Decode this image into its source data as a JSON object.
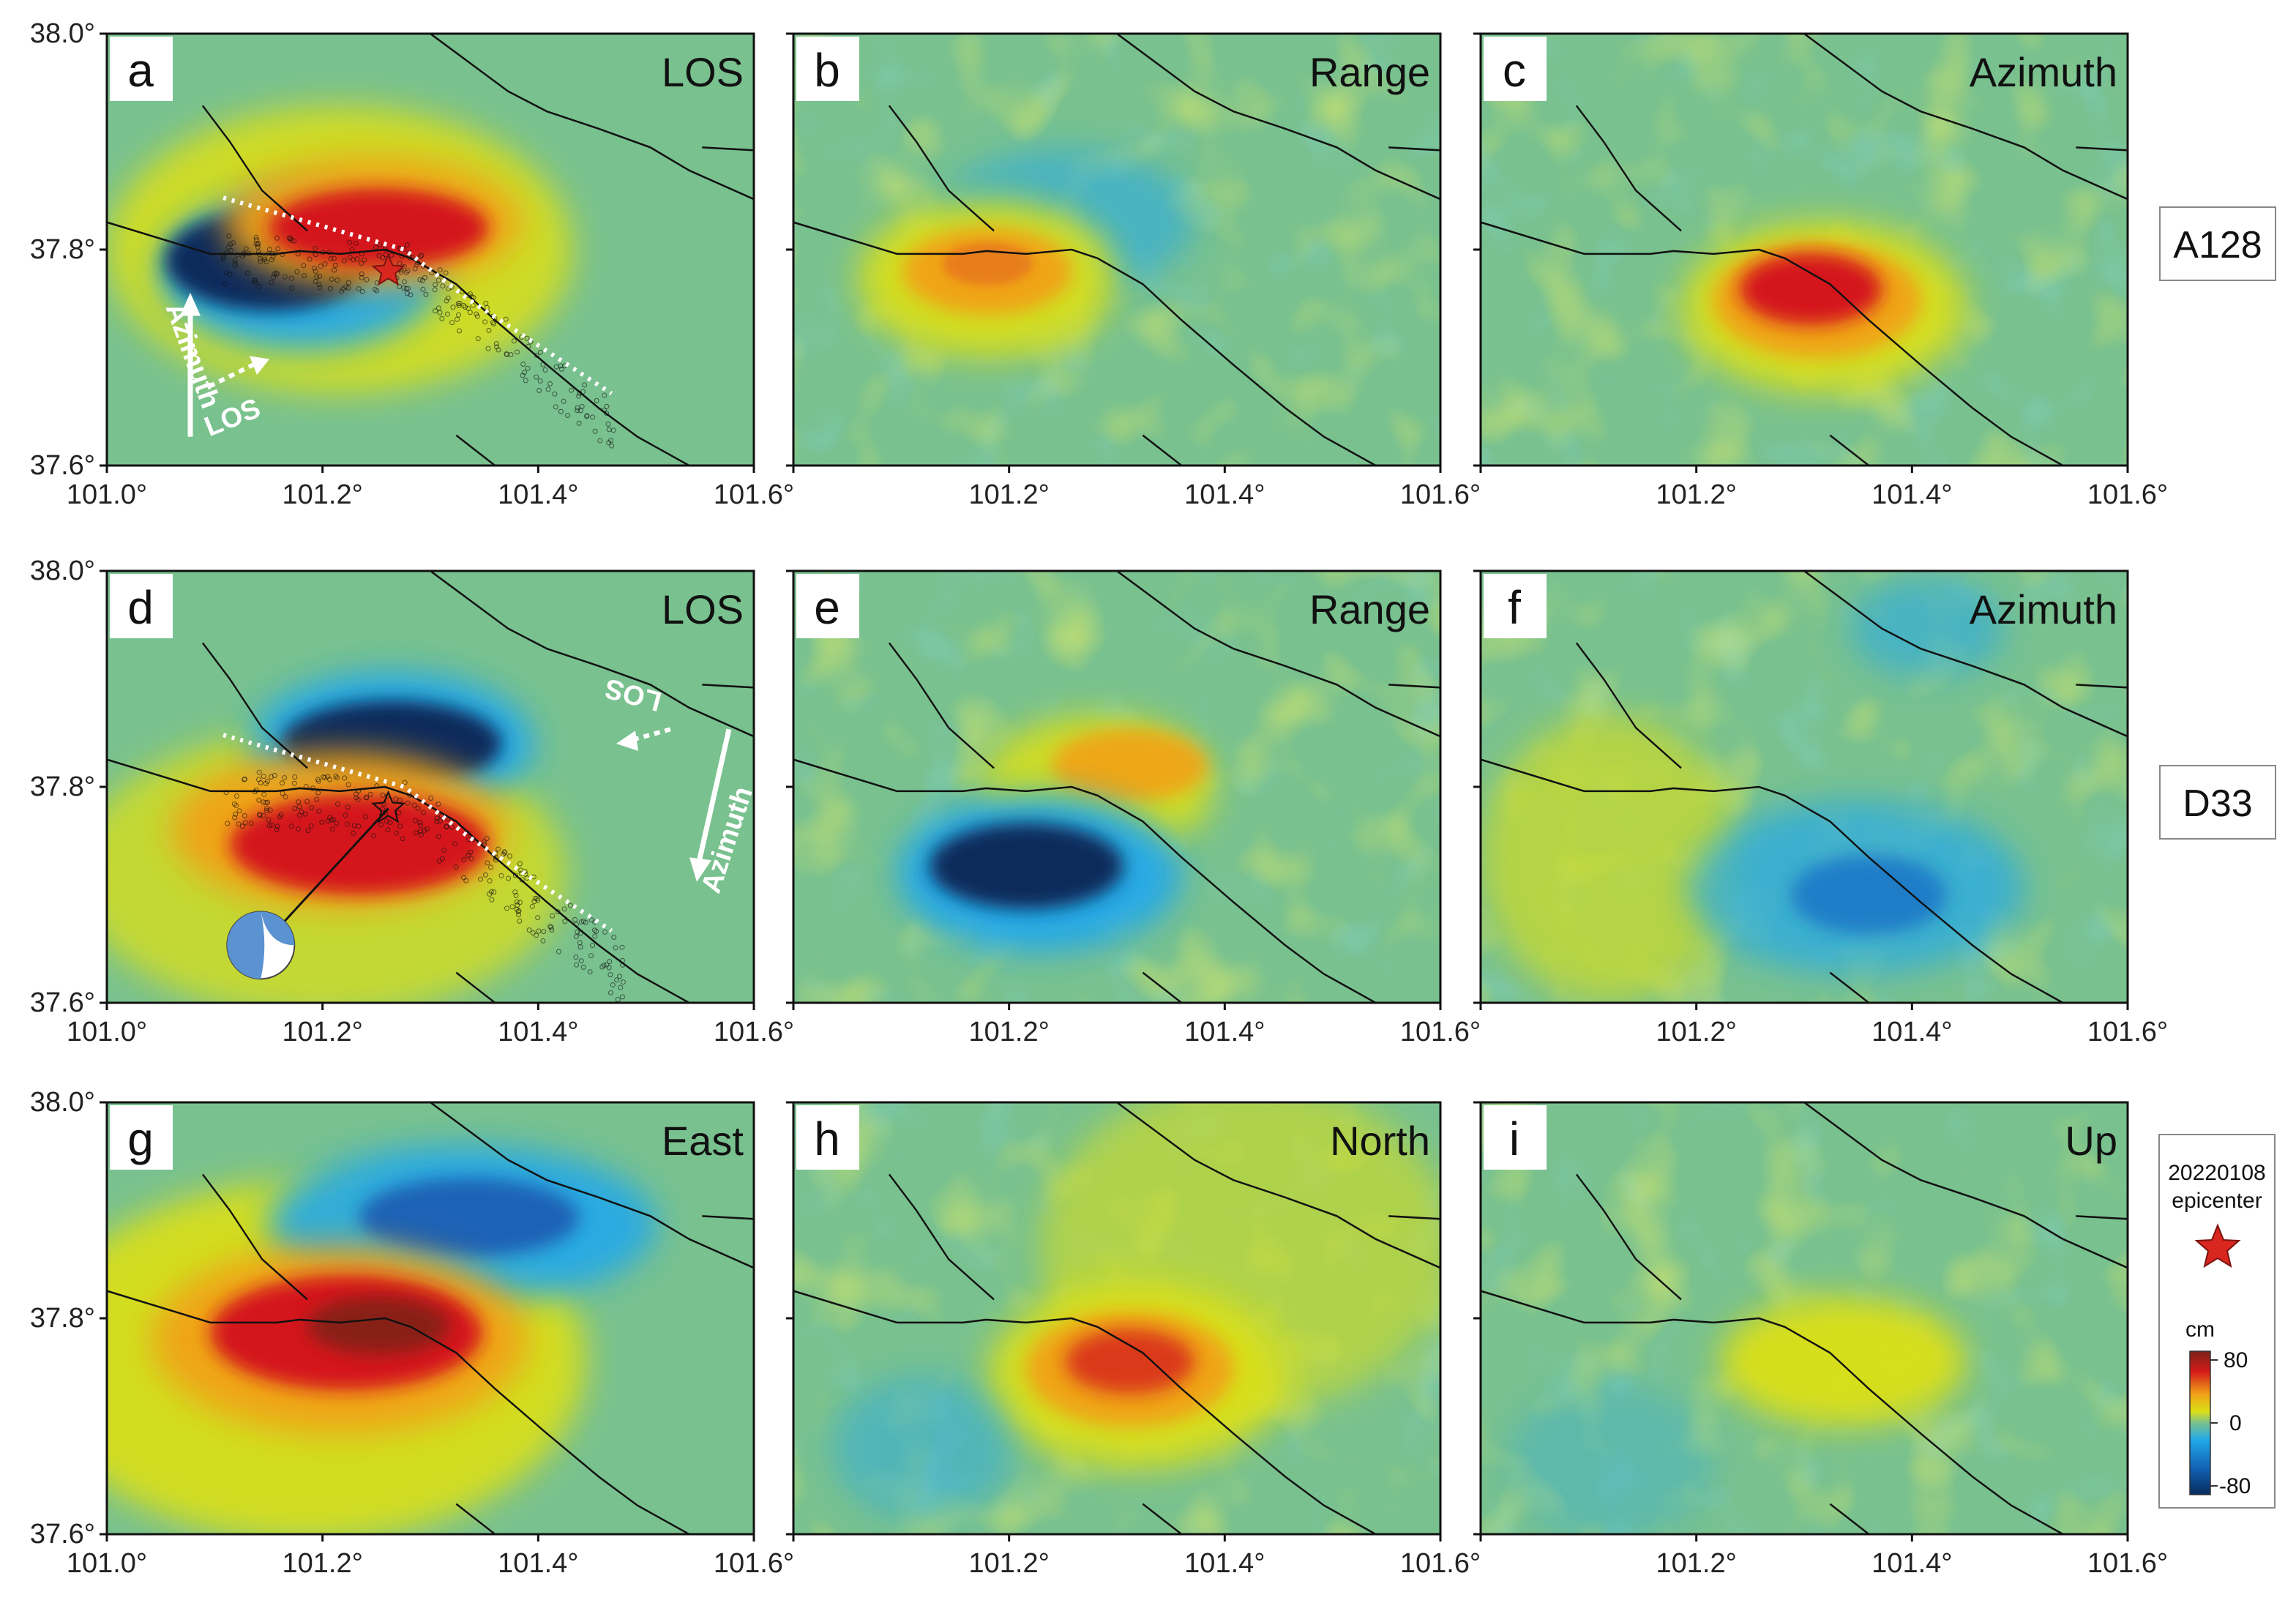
{
  "x_ticks": [
    "101.0°",
    "101.2°",
    "101.4°",
    "101.6°"
  ],
  "y_ticks": [
    "38.0°",
    "37.8°",
    "37.6°"
  ],
  "panels": [
    {
      "letter": "a",
      "title": "LOS",
      "field": "los_a128"
    },
    {
      "letter": "b",
      "title": "Range",
      "field": "range_a128"
    },
    {
      "letter": "c",
      "title": "Azimuth",
      "field": "azimuth_a128"
    },
    {
      "letter": "d",
      "title": "LOS",
      "field": "los_d33"
    },
    {
      "letter": "e",
      "title": "Range",
      "field": "range_d33"
    },
    {
      "letter": "f",
      "title": "Azimuth",
      "field": "azimuth_d33"
    },
    {
      "letter": "g",
      "title": "East",
      "field": "east"
    },
    {
      "letter": "h",
      "title": "North",
      "field": "north"
    },
    {
      "letter": "i",
      "title": "Up",
      "field": "up"
    }
  ],
  "track_labels": [
    "A128",
    "D33"
  ],
  "arrow_labels": {
    "azimuth": "Azimuth",
    "los": "LOS"
  },
  "legend": {
    "epicenter_label_1": "20220108",
    "epicenter_label_2": "epicenter",
    "unit": "cm",
    "max": "80",
    "mid": "0",
    "min": "-80"
  },
  "colors": {
    "background": "#79c18f",
    "positive_peak": "#7a2418",
    "positive": "#d4191a",
    "mid_positive": "#f1a218",
    "yellow": "#dce016",
    "negative": "#21a8ea",
    "negative_peak": "#082c5c",
    "fault": "#111111",
    "star": "#d9271f",
    "beachball": "#5b92d2"
  },
  "icons": [
    "epicenter-star-icon",
    "focal-mechanism-icon",
    "azimuth-arrow-icon",
    "los-arrow-icon"
  ]
}
